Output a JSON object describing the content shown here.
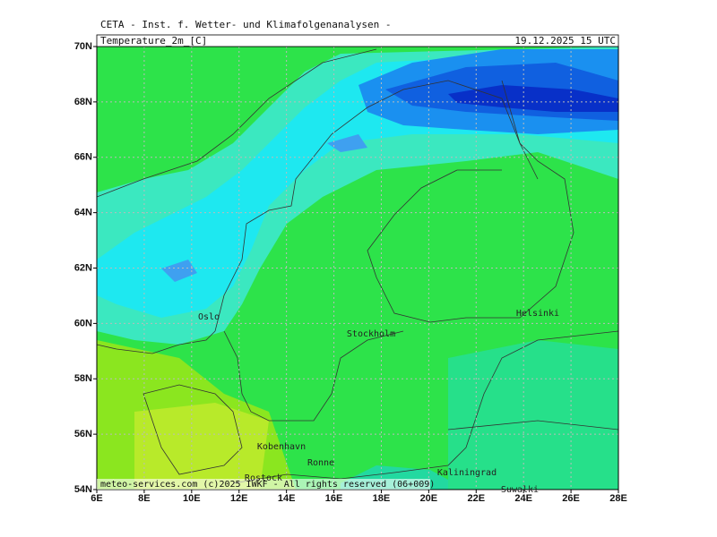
{
  "header": "CETA - Inst. f. Wetter- und Klimafolgenanalysen -",
  "title": "Temperature_2m_[C]",
  "date": "19.12.2025  15 UTC",
  "lon_ticks": [
    "6E",
    "8E",
    "10E",
    "12E",
    "14E",
    "16E",
    "18E",
    "20E",
    "22E",
    "24E",
    "26E",
    "28E"
  ],
  "lat_ticks": [
    "54N",
    "56N",
    "58N",
    "60N",
    "62N",
    "64N",
    "66N",
    "68N",
    "70N"
  ],
  "cities": [
    "Oslo",
    "Stockholm",
    "Helsinki",
    "Kobenhavn",
    "Ronne",
    "Kaliningrad",
    "Rostock",
    "Suwalki"
  ],
  "footer": "meteo-services.com (c)2025 IWKF - All rights reserved (06+009)"
}
